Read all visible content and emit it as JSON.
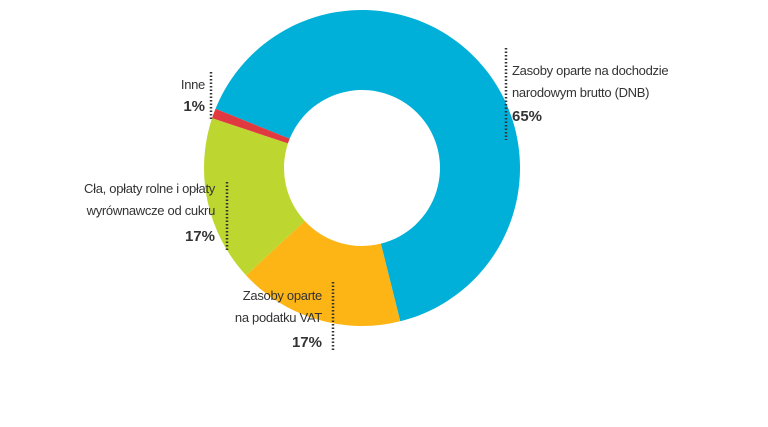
{
  "chart_data": {
    "type": "donut",
    "categories": [
      "Zasoby oparte na dochodzie\nnarodowym brutto (DNB)",
      "Zasoby oparte\nna podatku VAT",
      "Cła, opłaty rolne i opłaty\nwyrównawcze od cukru",
      "Inne"
    ],
    "values": [
      65,
      17,
      17,
      1
    ],
    "value_labels": [
      "65%",
      "17%",
      "17%",
      "1%"
    ],
    "colors": [
      "#00b0d8",
      "#fdb515",
      "#bed630",
      "#e0393f"
    ]
  }
}
